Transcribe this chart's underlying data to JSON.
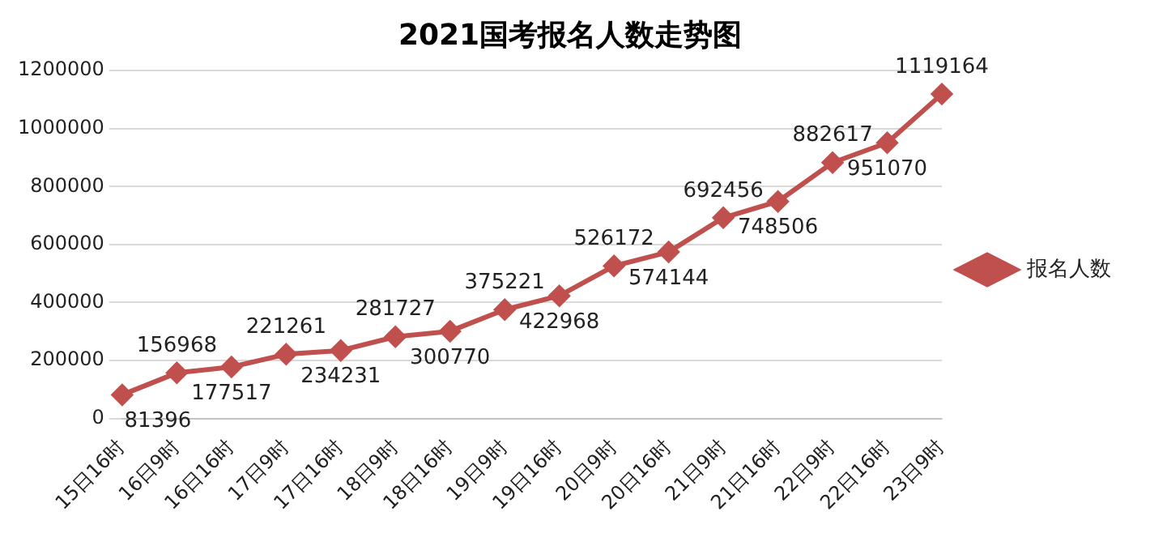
{
  "chart_data": {
    "type": "line",
    "title": "2021国考报名人数走势图",
    "categories": [
      "15日16时",
      "16日9时",
      "16日16时",
      "17日9时",
      "17日16时",
      "18日9时",
      "18日16时",
      "19日9时",
      "19日16时",
      "20日9时",
      "20日16时",
      "21日9时",
      "21日16时",
      "22日9时",
      "22日16时",
      "23日9时"
    ],
    "series": [
      {
        "name": "报名人数",
        "color": "#c0504d",
        "values": [
          81396,
          156968,
          177517,
          221261,
          234231,
          281727,
          300770,
          375221,
          422968,
          526172,
          574144,
          692456,
          748506,
          882617,
          951070,
          1119164
        ]
      }
    ],
    "ylim": [
      0,
      1200000
    ],
    "yticks": [
      0,
      200000,
      400000,
      600000,
      800000,
      1000000,
      1200000
    ],
    "grid": "y",
    "legend": "right",
    "marker": "diamond",
    "line_style": "solid",
    "data_labels": true
  }
}
